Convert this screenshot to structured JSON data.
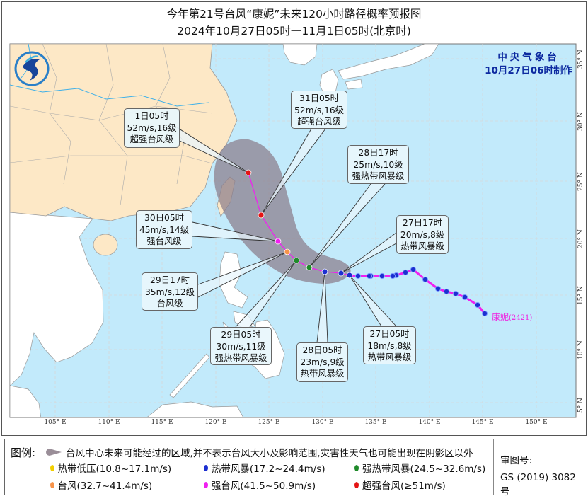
{
  "title": {
    "line1": "今年第21号台风“康妮”未来120小时路径概率预报图",
    "line2": "2024年10月27日05时一11月1日05时(北京时)"
  },
  "agency": {
    "name": "中央气象台",
    "issued": "10月27日06时制作"
  },
  "storm": {
    "name": "康妮",
    "id": "(2421)"
  },
  "axes": {
    "longitudes": [
      "105° E",
      "110° E",
      "115° E",
      "120° E",
      "125° E",
      "130° E",
      "135° E",
      "140° E",
      "145° E",
      "150° E"
    ],
    "latitudes": [
      "35° N",
      "30° N",
      "25° N",
      "20° N",
      "15° N",
      "10° N",
      "5° N"
    ]
  },
  "forecast_points": [
    {
      "time": "27日05时",
      "wind": "18m/s,8级",
      "category": "热带风暴级",
      "intensity": "tropical-storm"
    },
    {
      "time": "27日17时",
      "wind": "20m/s,8级",
      "category": "热带风暴级",
      "intensity": "tropical-storm"
    },
    {
      "time": "28日05时",
      "wind": "23m/s,9级",
      "category": "热带风暴级",
      "intensity": "tropical-storm"
    },
    {
      "time": "28日17时",
      "wind": "25m/s,10级",
      "category": "强热带风暴级",
      "intensity": "severe-tropical-storm"
    },
    {
      "time": "29日05时",
      "wind": "30m/s,11级",
      "category": "强热带风暴级",
      "intensity": "severe-tropical-storm"
    },
    {
      "time": "29日17时",
      "wind": "35m/s,12级",
      "category": "台风级",
      "intensity": "typhoon"
    },
    {
      "time": "30日05时",
      "wind": "45m/s,14级",
      "category": "强台风级",
      "intensity": "severe-typhoon"
    },
    {
      "time": "31日05时",
      "wind": "52m/s,16级",
      "category": "超强台风级",
      "intensity": "super-typhoon"
    },
    {
      "time": "1日05时",
      "wind": "52m/s,16级",
      "category": "超强台风级",
      "intensity": "super-typhoon"
    }
  ],
  "legend": {
    "title": "图例:",
    "cone_text": "台风中心未来可能经过的区域,并不表示台风大小及影响范围,灾害性天气也可能出现在阴影区以外",
    "items": [
      {
        "label": "热带低压(10.8~17.1m/s)",
        "color": "#f2cf00"
      },
      {
        "label": "热带风暴(17.2~24.4m/s)",
        "color": "#1c2fd0"
      },
      {
        "label": "强热带风暴(24.5~32.6m/s)",
        "color": "#1f8a2a"
      },
      {
        "label": "台风(32.7~41.4m/s)",
        "color": "#f7934a"
      },
      {
        "label": "强台风(41.5~50.9m/s)",
        "color": "#f020f0"
      },
      {
        "label": "超强台风(≥51m/s)",
        "color": "#e41414"
      }
    ],
    "approval_label": "审图号:",
    "approval_number": "GS (2019) 3082号"
  },
  "colors": {
    "sea": "#c2eafb",
    "china_land": "#fde8c6",
    "other_land": "#ffffff",
    "cone": "#9a8e98",
    "track": "#f020f0",
    "agency_text": "#0d2aa0"
  }
}
